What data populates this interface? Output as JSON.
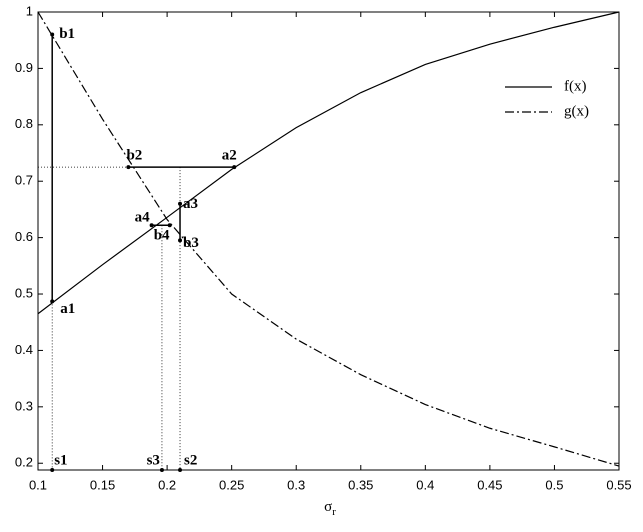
{
  "chart_data": {
    "type": "line",
    "xlabel": {
      "symbol": "σ",
      "subscript": "r"
    },
    "x": [
      0.1,
      0.15,
      0.2,
      0.25,
      0.3,
      0.35,
      0.4,
      0.45,
      0.5,
      0.55
    ],
    "series": [
      {
        "name": "f(x)",
        "color": "#000000",
        "dash": "solid",
        "values": [
          0.465,
          0.552,
          0.636,
          0.721,
          0.795,
          0.857,
          0.907,
          0.943,
          0.973,
          1.0
        ]
      },
      {
        "name": "g(x)",
        "color": "#000000",
        "dash": "dashdot",
        "values": [
          1.0,
          0.81,
          0.632,
          0.5,
          0.42,
          0.357,
          0.304,
          0.262,
          0.229,
          0.195
        ]
      }
    ],
    "xlim": [
      0.1,
      0.55
    ],
    "ylim": [
      0.188,
      1
    ],
    "xticks": [
      0.1,
      0.15,
      0.2,
      0.25,
      0.3,
      0.35,
      0.4,
      0.45,
      0.5,
      0.55
    ],
    "yticks": [
      0.2,
      0.3,
      0.4,
      0.5,
      0.6,
      0.7,
      0.8,
      0.9,
      1
    ],
    "grid": false,
    "legend": "top-right",
    "points": [
      {
        "label": "b1",
        "x": 0.111,
        "y": 0.96
      },
      {
        "label": "b2",
        "x": 0.17,
        "y": 0.725
      },
      {
        "label": "a2",
        "x": 0.252,
        "y": 0.725
      },
      {
        "label": "a3",
        "x": 0.21,
        "y": 0.66
      },
      {
        "label": "a4",
        "x": 0.188,
        "y": 0.622
      },
      {
        "label": "b4",
        "x": 0.202,
        "y": 0.622
      },
      {
        "label": "b3",
        "x": 0.21,
        "y": 0.595
      },
      {
        "label": "a1",
        "x": 0.111,
        "y": 0.487
      },
      {
        "label": "s1",
        "x": 0.111,
        "y": 0.188
      },
      {
        "label": "s3",
        "x": 0.196,
        "y": 0.188
      },
      {
        "label": "s2",
        "x": 0.21,
        "y": 0.188
      }
    ],
    "segments": [
      {
        "style": "solid",
        "x": [
          0.111,
          0.111
        ],
        "y": [
          0.96,
          0.487
        ]
      },
      {
        "style": "solid",
        "x": [
          0.17,
          0.252
        ],
        "y": [
          0.725,
          0.725
        ]
      },
      {
        "style": "solid",
        "x": [
          0.21,
          0.21
        ],
        "y": [
          0.66,
          0.595
        ]
      },
      {
        "style": "solid",
        "x": [
          0.188,
          0.202
        ],
        "y": [
          0.622,
          0.622
        ]
      },
      {
        "style": "dotted",
        "x": [
          0.1,
          0.17
        ],
        "y": [
          0.725,
          0.725
        ]
      },
      {
        "style": "dotted",
        "x": [
          0.111,
          0.111
        ],
        "y": [
          0.487,
          0.188
        ]
      },
      {
        "style": "dotted",
        "x": [
          0.21,
          0.21
        ],
        "y": [
          0.725,
          0.188
        ]
      },
      {
        "style": "dotted",
        "x": [
          0.196,
          0.196
        ],
        "y": [
          0.622,
          0.188
        ]
      }
    ]
  }
}
